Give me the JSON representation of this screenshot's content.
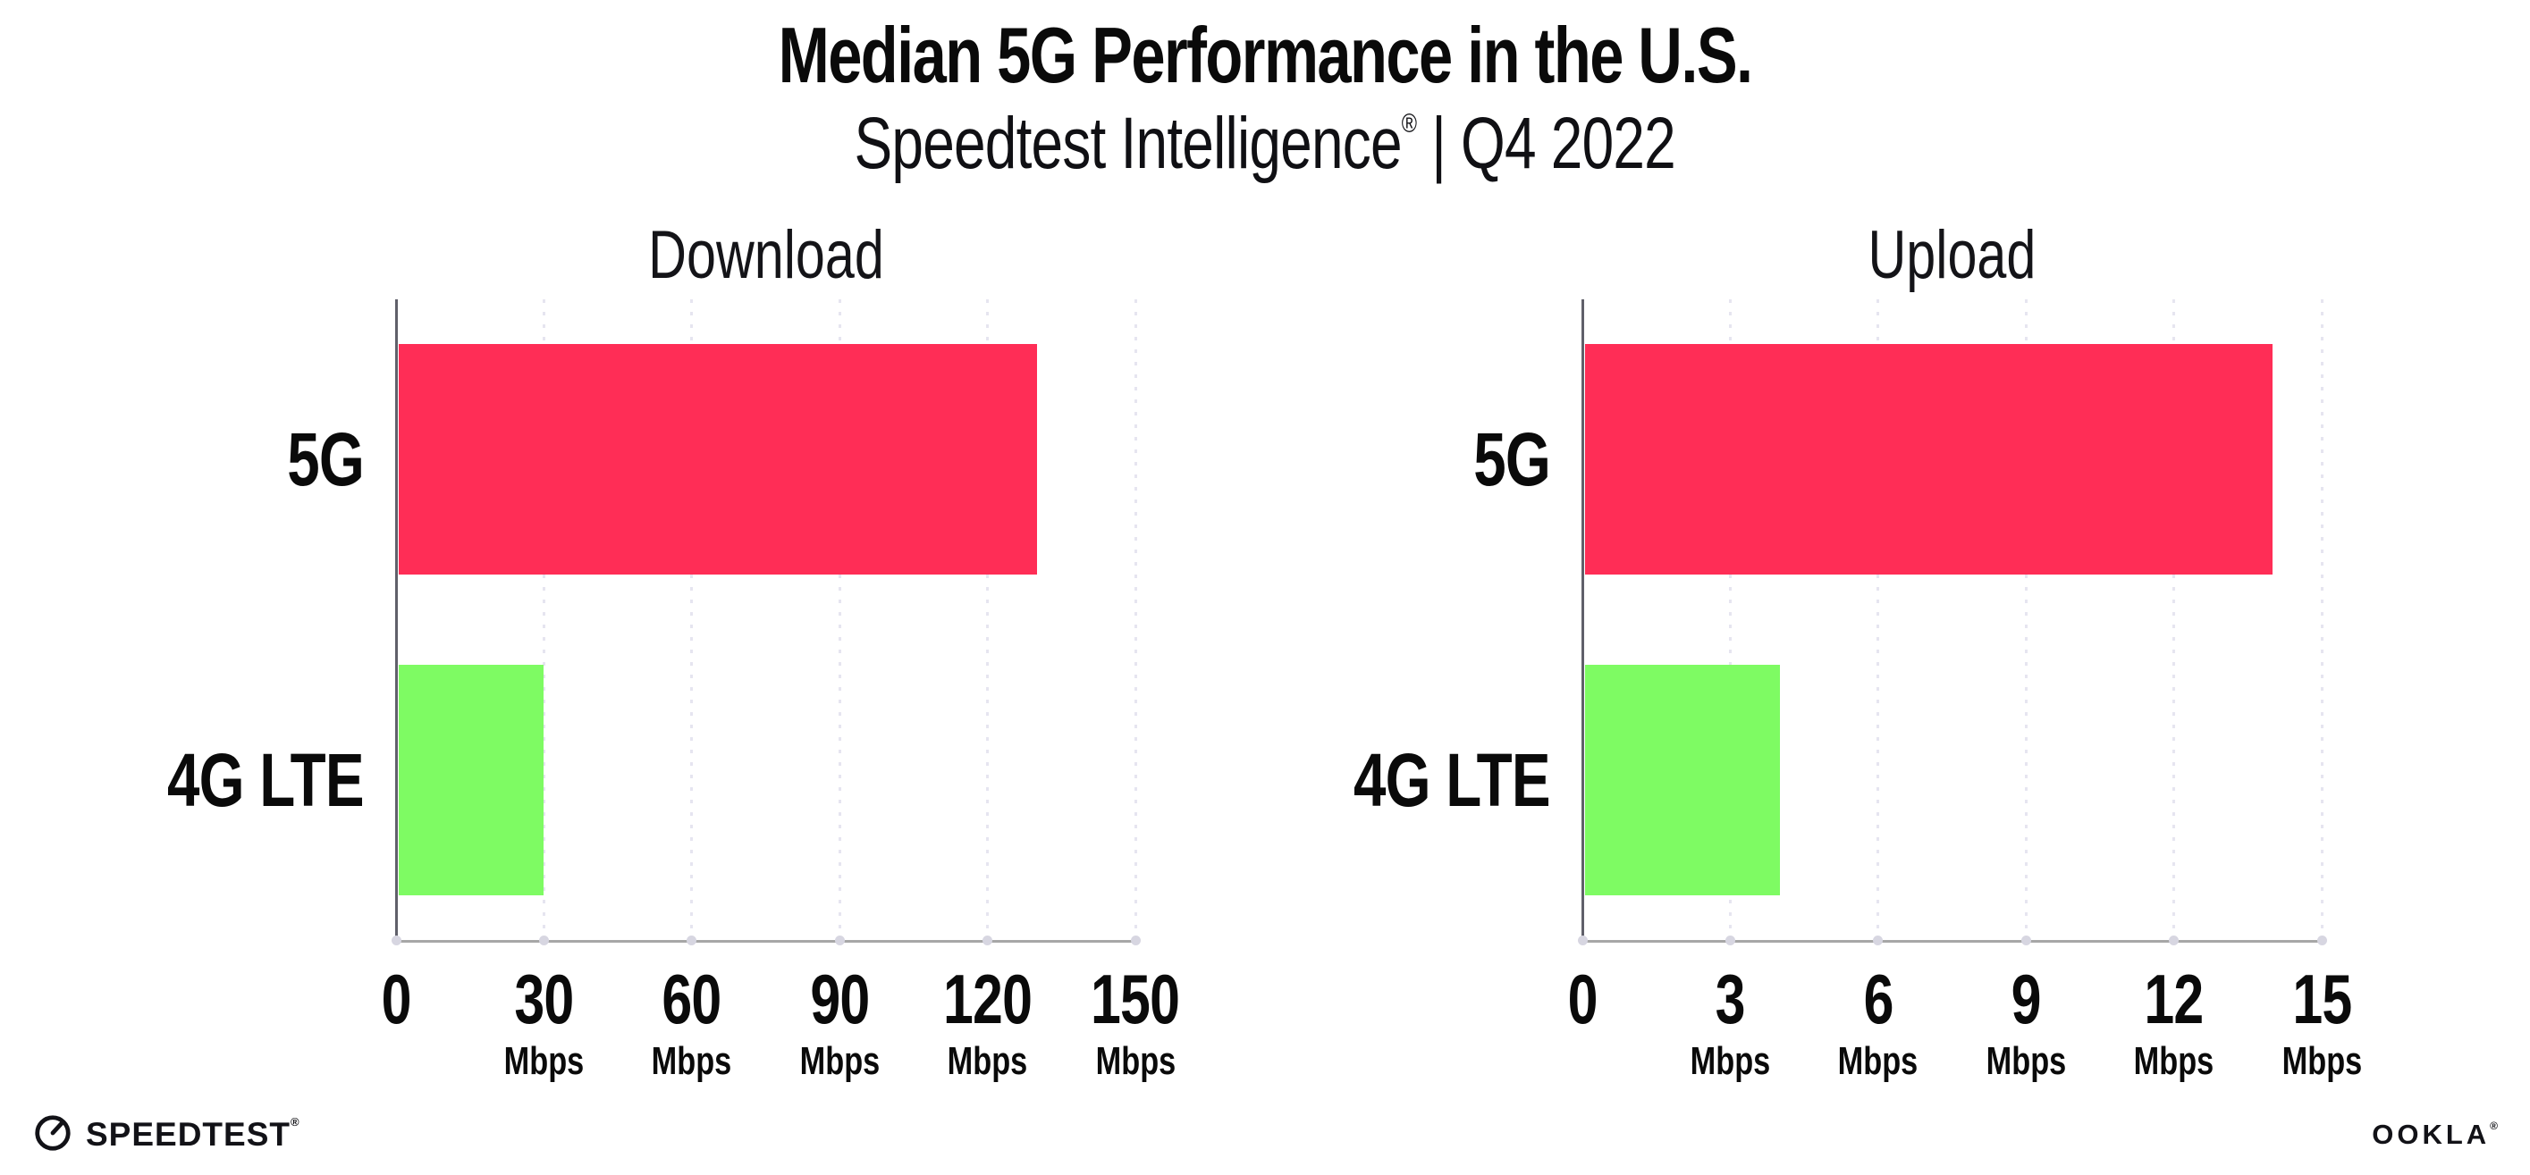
{
  "header": {
    "title": "Median 5G Performance in the U.S.",
    "subtitle_name": "Speedtest Intelligence",
    "subtitle_reg": "®",
    "subtitle_rest": " | Q4 2022"
  },
  "footer": {
    "speedtest_label": "SPEEDTEST",
    "speedtest_reg": "®",
    "ookla_label": "OOKLA",
    "ookla_reg": "®"
  },
  "icons": {
    "speedtest_logo": "speedtest-gauge-icon"
  },
  "colors": {
    "bar_5g": "#ff2d56",
    "bar_4g_lte": "#7efb63",
    "gridline": "#e6e5f0",
    "x_axis": "#a7a7a7",
    "y_axis": "#60606a",
    "text": "#0a0a0a"
  },
  "chart_data": [
    {
      "type": "bar",
      "orientation": "horizontal",
      "title": "Download",
      "categories": [
        "5G",
        "4G LTE"
      ],
      "values": [
        130,
        30
      ],
      "unit": "Mbps",
      "xlim": [
        0,
        150
      ],
      "tick_values": [
        0,
        30,
        60,
        90,
        120,
        150
      ],
      "tick_unit": "Mbps",
      "bar_colors": [
        "#ff2d56",
        "#7efb63"
      ],
      "grid": "dotted-vertical",
      "legend": "none"
    },
    {
      "type": "bar",
      "orientation": "horizontal",
      "title": "Upload",
      "categories": [
        "5G",
        "4G LTE"
      ],
      "values": [
        14,
        4
      ],
      "unit": "Mbps",
      "xlim": [
        0,
        15
      ],
      "tick_values": [
        0,
        3,
        6,
        9,
        12,
        15
      ],
      "tick_unit": "Mbps",
      "bar_colors": [
        "#ff2d56",
        "#7efb63"
      ],
      "grid": "dotted-vertical",
      "legend": "none"
    }
  ]
}
